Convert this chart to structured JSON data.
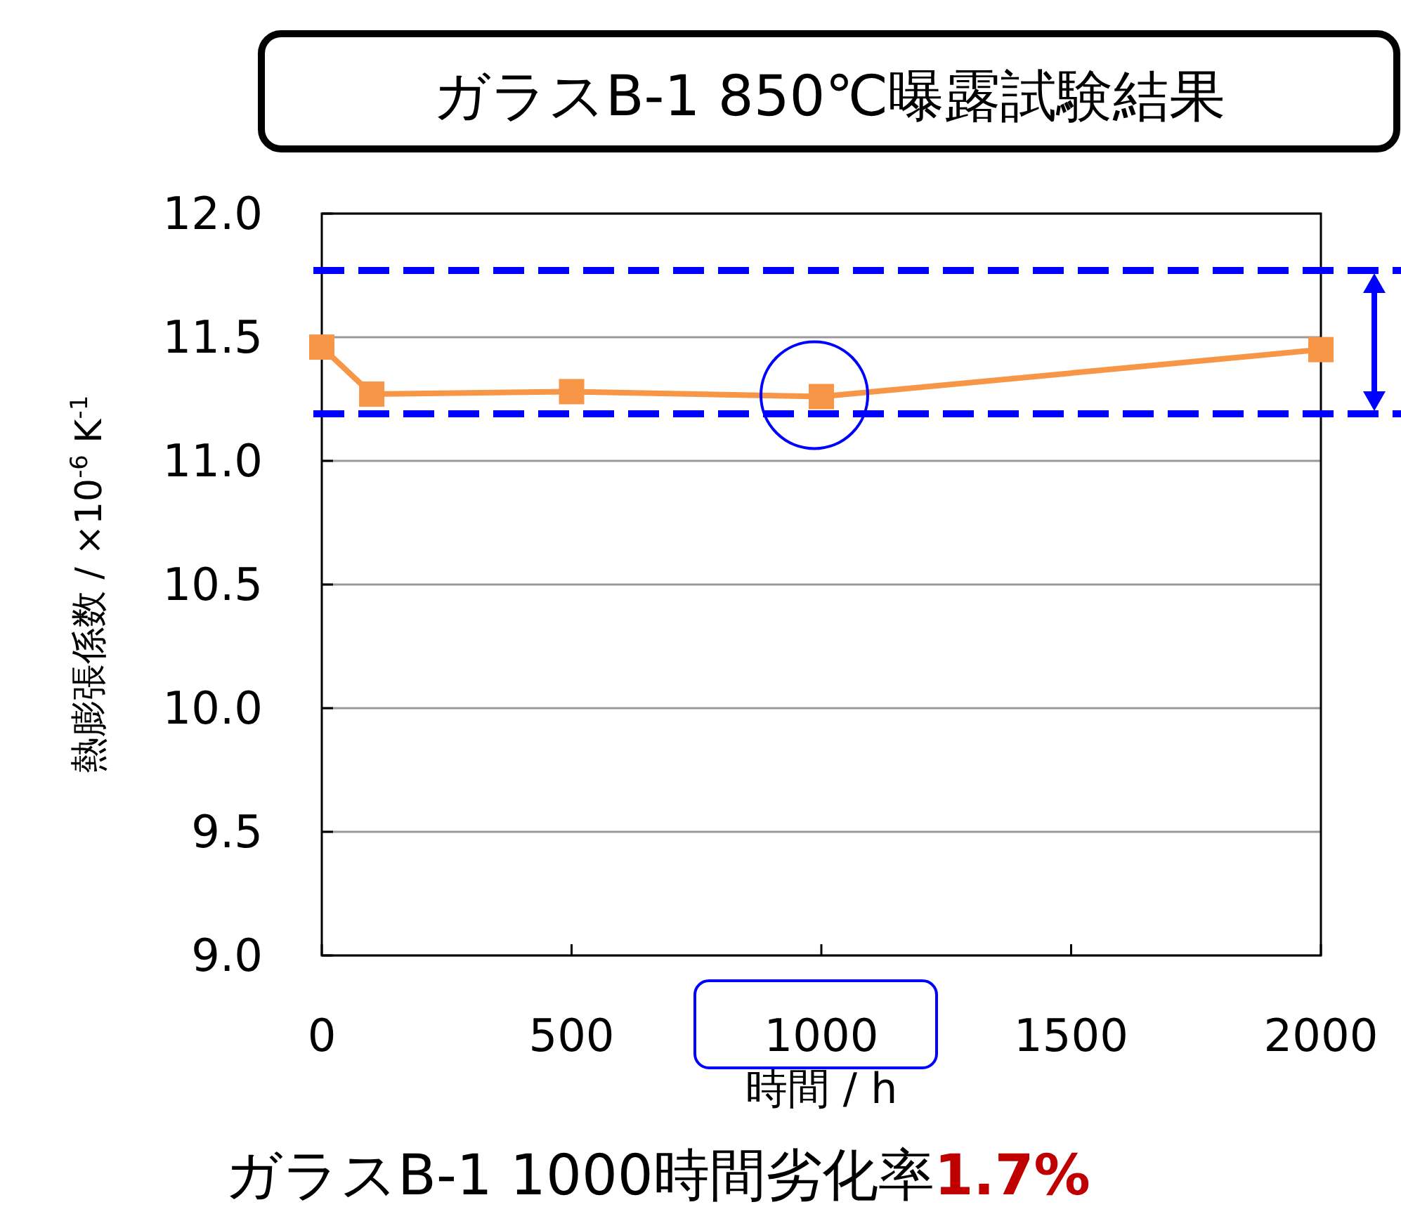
{
  "chart_data": {
    "type": "line",
    "title": "ガラスB-1 850℃曝露試験結果",
    "xlabel": "時間 / h",
    "ylabel": "熱膨張係数 / ×10$^{-6}$ K$^{-1}$",
    "x": [
      0,
      100,
      500,
      1000,
      2000
    ],
    "series": [
      {
        "color": "#f79646",
        "values": [
          11.46,
          11.27,
          11.28,
          11.26,
          11.45
        ]
      }
    ],
    "xlim": [
      0,
      2000
    ],
    "xticks": [
      0,
      500,
      1000,
      1500,
      2000
    ],
    "ylim": [
      9,
      12
    ],
    "yticks": [
      {
        "value": 9,
        "label": "9.0"
      },
      {
        "value": 9.5,
        "label": "9.5"
      },
      {
        "value": 10,
        "label": "10.0"
      },
      {
        "value": 10.5,
        "label": "10.5"
      },
      {
        "value": 11,
        "label": "11.0"
      },
      {
        "value": 11.5,
        "label": "11.5"
      },
      {
        "value": 12,
        "label": "12.0"
      }
    ],
    "ref_lines": [
      {
        "axis": "y",
        "value": 11.77,
        "color": "#0000ff",
        "line_style": "dashed"
      },
      {
        "axis": "y",
        "value": 11.19,
        "color": "#0000ff",
        "line_style": "dashed"
      }
    ],
    "annotations": [
      "ガラスB-1 1000時間劣化率",
      "1.7%"
    ],
    "grid": "y",
    "marker": "square",
    "line_style": "solid"
  }
}
